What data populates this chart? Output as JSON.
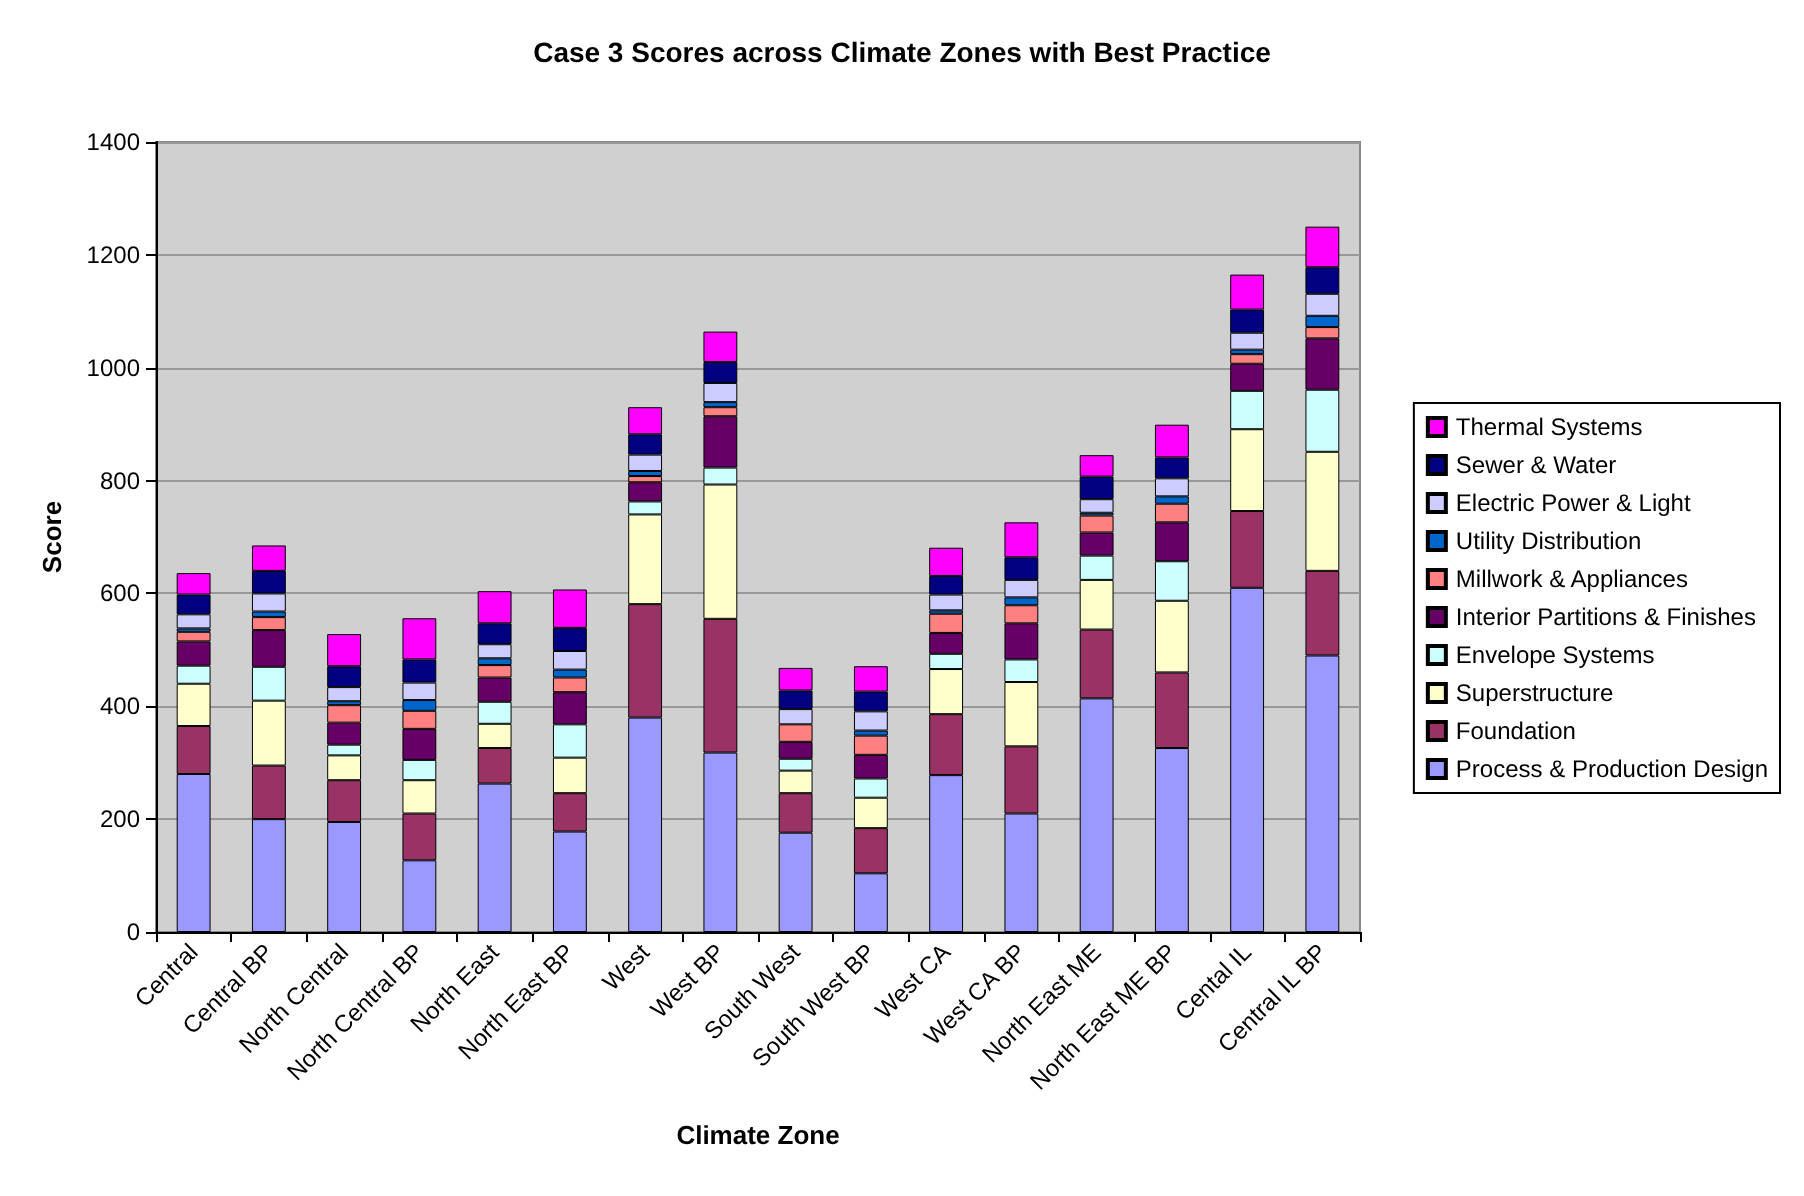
{
  "chart_data": {
    "type": "bar",
    "title": "Case 3 Scores across Climate Zones with Best Practice",
    "xlabel": "Climate Zone",
    "ylabel": "Score",
    "categories": [
      "Central",
      "Central BP",
      "North Central",
      "North Central BP",
      "North East",
      "North East BP",
      "West",
      "West BP",
      "South West",
      "South West BP",
      "West CA",
      "West CA BP",
      "North East ME",
      "North East ME BP",
      "Cental IL",
      "Central IL BP"
    ],
    "stacked": true,
    "ylim": [
      0,
      1400
    ],
    "yticks": [
      0,
      200,
      400,
      600,
      800,
      1000,
      1200,
      1400
    ],
    "grid": "y",
    "legend": "right",
    "series": [
      {
        "name": "Process & Production Design",
        "color": "#9999ff",
        "values": [
          280,
          200,
          195,
          127,
          263,
          178,
          380,
          318,
          176,
          104,
          278,
          210,
          414,
          326,
          610,
          490
        ]
      },
      {
        "name": "Foundation",
        "color": "#993366",
        "values": [
          85,
          95,
          74,
          83,
          63,
          68,
          201,
          237,
          70,
          80,
          108,
          119,
          122,
          134,
          136,
          150
        ]
      },
      {
        "name": "Superstructure",
        "color": "#ffffcc",
        "values": [
          75,
          115,
          44,
          59,
          43,
          63,
          159,
          238,
          40,
          54,
          80,
          114,
          88,
          127,
          145,
          211
        ]
      },
      {
        "name": "Envelope Systems",
        "color": "#ccffff",
        "values": [
          32,
          60,
          19,
          36,
          39,
          59,
          23,
          30,
          21,
          34,
          27,
          40,
          43,
          70,
          68,
          110
        ]
      },
      {
        "name": "Interior Partitions & Finishes",
        "color": "#660066",
        "values": [
          43,
          65,
          39,
          55,
          43,
          57,
          34,
          91,
          30,
          42,
          37,
          64,
          41,
          69,
          48,
          91
        ]
      },
      {
        "name": "Millwork & Appliances",
        "color": "#ff8080",
        "values": [
          17,
          23,
          31,
          32,
          22,
          26,
          11,
          16,
          31,
          34,
          34,
          32,
          30,
          33,
          17,
          20
        ]
      },
      {
        "name": "Utility Distribution",
        "color": "#0066cc",
        "values": [
          6,
          10,
          7,
          19,
          12,
          14,
          9,
          9,
          null,
          9,
          6,
          14,
          5,
          13,
          8,
          20
        ]
      },
      {
        "name": "Electric Power & Light",
        "color": "#ccccff",
        "values": [
          25,
          32,
          25,
          31,
          25,
          33,
          29,
          34,
          27,
          34,
          28,
          31,
          24,
          32,
          30,
          39
        ]
      },
      {
        "name": "Sewer & Water",
        "color": "#000080",
        "values": [
          35,
          40,
          37,
          41,
          37,
          41,
          36,
          37,
          33,
          35,
          33,
          40,
          40,
          37,
          41,
          47
        ]
      },
      {
        "name": "Thermal Systems",
        "color": "#ff00ff",
        "values": [
          38,
          45,
          57,
          73,
          57,
          68,
          48,
          54,
          40,
          45,
          50,
          62,
          38,
          58,
          62,
          72
        ]
      }
    ]
  }
}
